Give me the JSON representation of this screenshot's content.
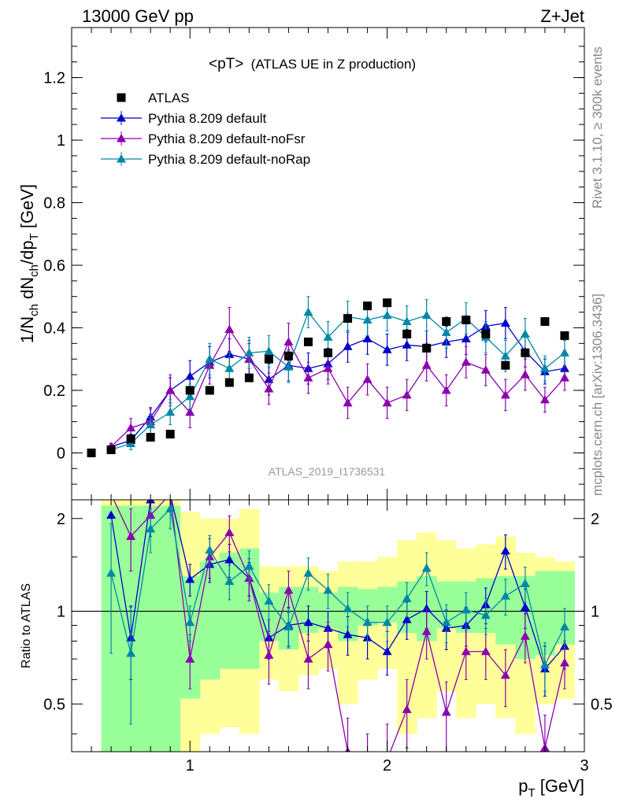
{
  "header": {
    "left_label": "13000 GeV pp",
    "right_label": "Z+Jet"
  },
  "side_labels": {
    "rivet": "Rivet 3.1.10, ≥ 300k events",
    "mcplots": "mcplots.cern.ch [arXiv:1306.3436]"
  },
  "chart_data": [
    {
      "type": "scatter",
      "title": "<pT>",
      "title_suffix": "(ATLAS UE in Z production)",
      "analysis_label": "ATLAS_2019_I1736531",
      "ylabel": "1/N_ch dN_ch/dp_T [GeV]",
      "ylabel_parts": {
        "main": "1/N",
        "sub1": "ch",
        "mid": " dN",
        "sub2": "ch",
        "mid2": "/dp",
        "sub3": "T",
        "unit": " [GeV]"
      },
      "xlim": [
        0.4,
        3.0
      ],
      "ylim": [
        -0.15,
        1.36
      ],
      "yticks": [
        "0",
        "0.2",
        "0.4",
        "0.6",
        "0.8",
        "1",
        "1.2"
      ],
      "grid": false,
      "legend_position": "top-left",
      "series": [
        {
          "name": "ATLAS",
          "marker": "square",
          "color": "#000000",
          "x": [
            0.5,
            0.6,
            0.7,
            0.8,
            0.9,
            1.0,
            1.1,
            1.2,
            1.3,
            1.4,
            1.5,
            1.6,
            1.7,
            1.8,
            1.9,
            2.0,
            2.1,
            2.2,
            2.3,
            2.4,
            2.5,
            2.6,
            2.7,
            2.8,
            2.9
          ],
          "y": [
            0.0,
            0.01,
            0.045,
            0.05,
            0.06,
            0.2,
            0.2,
            0.225,
            0.24,
            0.3,
            0.31,
            0.355,
            0.32,
            0.43,
            0.47,
            0.48,
            0.38,
            0.335,
            0.42,
            0.425,
            0.38,
            0.28,
            0.32,
            0.42,
            0.375
          ]
        },
        {
          "name": "Pythia 8.209 default",
          "marker": "triangle",
          "color": "#0000cc",
          "x": [
            0.6,
            0.7,
            0.8,
            0.9,
            1.0,
            1.1,
            1.2,
            1.3,
            1.4,
            1.5,
            1.6,
            1.7,
            1.8,
            1.9,
            2.0,
            2.1,
            2.2,
            2.3,
            2.4,
            2.5,
            2.6,
            2.7,
            2.8,
            2.9
          ],
          "y": [
            0.02,
            0.04,
            0.115,
            0.2,
            0.245,
            0.29,
            0.315,
            0.3,
            0.235,
            0.28,
            0.27,
            0.285,
            0.34,
            0.365,
            0.33,
            0.345,
            0.34,
            0.355,
            0.365,
            0.405,
            0.415,
            0.325,
            0.26,
            0.27
          ],
          "err": [
            0.01,
            0.02,
            0.03,
            0.04,
            0.05,
            0.05,
            0.05,
            0.05,
            0.05,
            0.05,
            0.05,
            0.05,
            0.05,
            0.05,
            0.05,
            0.05,
            0.05,
            0.05,
            0.05,
            0.05,
            0.05,
            0.05,
            0.04,
            0.04
          ]
        },
        {
          "name": "Pythia 8.209 default-noFsr",
          "marker": "triangle",
          "color": "#8b00b0",
          "x": [
            0.6,
            0.7,
            0.8,
            0.9,
            1.0,
            1.1,
            1.2,
            1.3,
            1.4,
            1.5,
            1.6,
            1.7,
            1.8,
            1.9,
            2.0,
            2.1,
            2.2,
            2.3,
            2.4,
            2.5,
            2.6,
            2.7,
            2.8,
            2.9
          ],
          "y": [
            0.02,
            0.08,
            0.1,
            0.2,
            0.13,
            0.28,
            0.395,
            0.3,
            0.205,
            0.355,
            0.24,
            0.27,
            0.16,
            0.235,
            0.16,
            0.185,
            0.28,
            0.2,
            0.29,
            0.265,
            0.185,
            0.25,
            0.17,
            0.24
          ],
          "err": [
            0.01,
            0.03,
            0.04,
            0.05,
            0.05,
            0.06,
            0.07,
            0.06,
            0.05,
            0.06,
            0.05,
            0.05,
            0.05,
            0.05,
            0.05,
            0.05,
            0.05,
            0.05,
            0.05,
            0.05,
            0.05,
            0.05,
            0.04,
            0.04
          ]
        },
        {
          "name": "Pythia 8.209 default-noRap",
          "marker": "triangle",
          "color": "#0087a8",
          "x": [
            0.6,
            0.7,
            0.8,
            0.9,
            1.0,
            1.1,
            1.2,
            1.3,
            1.4,
            1.5,
            1.6,
            1.7,
            1.8,
            1.9,
            2.0,
            2.1,
            2.2,
            2.3,
            2.4,
            2.5,
            2.6,
            2.7,
            2.8,
            2.9
          ],
          "y": [
            0.01,
            0.03,
            0.09,
            0.13,
            0.18,
            0.3,
            0.27,
            0.32,
            0.325,
            0.275,
            0.45,
            0.37,
            0.435,
            0.425,
            0.44,
            0.42,
            0.44,
            0.385,
            0.43,
            0.37,
            0.31,
            0.38,
            0.27,
            0.32
          ],
          "err": [
            0.01,
            0.02,
            0.03,
            0.04,
            0.04,
            0.05,
            0.05,
            0.05,
            0.05,
            0.05,
            0.05,
            0.05,
            0.05,
            0.05,
            0.05,
            0.05,
            0.05,
            0.05,
            0.05,
            0.05,
            0.05,
            0.05,
            0.04,
            0.04
          ]
        }
      ]
    },
    {
      "type": "line",
      "ylabel": "Ratio to ATLAS",
      "xlabel": "p_T [GeV]",
      "xlabel_parts": {
        "main": "p",
        "sub": "T",
        "unit": " [GeV]"
      },
      "xlim": [
        0.4,
        3.0
      ],
      "ylim": [
        0.35,
        2.3
      ],
      "xticks": [
        "1",
        "2",
        "3"
      ],
      "yticks": [
        "0.5",
        "1",
        "2"
      ],
      "yscale": "log",
      "reference_line": 1.0,
      "bands": {
        "x_edges": [
          0.55,
          0.65,
          0.75,
          0.85,
          0.95,
          1.05,
          1.15,
          1.25,
          1.35,
          1.45,
          1.55,
          1.65,
          1.75,
          1.85,
          1.95,
          2.05,
          2.15,
          2.25,
          2.35,
          2.45,
          2.55,
          2.65,
          2.75,
          2.85,
          2.95
        ],
        "inner_color": "#99ff99",
        "outer_color": "#ffff99",
        "inner_low": [
          0.35,
          0.35,
          0.35,
          0.35,
          0.52,
          0.6,
          0.65,
          0.65,
          0.8,
          0.75,
          0.85,
          0.88,
          0.8,
          0.9,
          0.92,
          0.85,
          0.8,
          0.88,
          0.85,
          0.85,
          0.78,
          0.7,
          0.72,
          0.78
        ],
        "inner_high": [
          2.2,
          2.2,
          2.2,
          2.2,
          1.3,
          1.45,
          1.55,
          1.6,
          1.15,
          1.2,
          1.2,
          1.15,
          1.2,
          1.18,
          1.2,
          1.25,
          1.3,
          1.25,
          1.25,
          1.28,
          1.3,
          1.3,
          1.35,
          1.35
        ],
        "outer_low": [
          0.35,
          0.4,
          0.35,
          0.35,
          0.35,
          0.4,
          0.42,
          0.4,
          0.6,
          0.55,
          0.62,
          0.65,
          0.5,
          0.6,
          0.65,
          0.4,
          0.45,
          0.55,
          0.45,
          0.5,
          0.45,
          0.4,
          0.5,
          0.52
        ],
        "outer_high": [
          2.3,
          2.3,
          2.3,
          2.3,
          2.1,
          2.0,
          2.0,
          2.15,
          1.4,
          1.4,
          1.4,
          1.35,
          1.45,
          1.45,
          1.5,
          1.7,
          1.8,
          1.7,
          1.6,
          1.65,
          1.75,
          1.55,
          1.5,
          1.45
        ]
      },
      "series": [
        {
          "name": "Pythia 8.209 default",
          "color": "#0000cc",
          "x": [
            0.6,
            0.7,
            0.8,
            0.9,
            1.0,
            1.1,
            1.2,
            1.3,
            1.4,
            1.5,
            1.6,
            1.7,
            1.8,
            1.9,
            2.0,
            2.1,
            2.2,
            2.3,
            2.4,
            2.5,
            2.6,
            2.7,
            2.8,
            2.9
          ],
          "y": [
            2.05,
            0.82,
            2.3,
            2.4,
            1.27,
            1.42,
            1.47,
            1.28,
            0.82,
            0.9,
            0.92,
            0.88,
            0.84,
            0.82,
            0.74,
            0.94,
            1.02,
            0.88,
            0.9,
            1.05,
            1.57,
            1.03,
            0.65,
            0.77
          ],
          "err": [
            0.0,
            0.22,
            0.3,
            0.3,
            0.15,
            0.18,
            0.18,
            0.16,
            0.12,
            0.13,
            0.12,
            0.12,
            0.12,
            0.12,
            0.12,
            0.13,
            0.14,
            0.13,
            0.13,
            0.14,
            0.2,
            0.15,
            0.12,
            0.12
          ]
        },
        {
          "name": "Pythia 8.209 default-noFsr",
          "color": "#8b00b0",
          "x": [
            0.6,
            0.7,
            0.8,
            0.9,
            1.0,
            1.1,
            1.2,
            1.3,
            1.4,
            1.5,
            1.6,
            1.7,
            1.8,
            1.9,
            2.0,
            2.1,
            2.2,
            2.3,
            2.4,
            2.5,
            2.6,
            2.7,
            2.8,
            2.9
          ],
          "y": [
            2.4,
            1.75,
            2.05,
            2.4,
            0.7,
            1.5,
            1.8,
            1.28,
            0.72,
            1.17,
            0.7,
            0.78,
            0.35,
            0.3,
            0.33,
            0.48,
            0.86,
            0.47,
            0.74,
            0.74,
            0.62,
            0.83,
            0.36,
            0.68
          ],
          "err": [
            0.0,
            0.4,
            0.3,
            0.3,
            0.14,
            0.22,
            0.24,
            0.2,
            0.14,
            0.18,
            0.14,
            0.14,
            0.1,
            0.1,
            0.1,
            0.12,
            0.16,
            0.12,
            0.14,
            0.14,
            0.13,
            0.15,
            0.1,
            0.12
          ]
        },
        {
          "name": "Pythia 8.209 default-noRap",
          "color": "#0087a8",
          "x": [
            0.6,
            0.7,
            0.8,
            0.9,
            1.0,
            1.1,
            1.2,
            1.3,
            1.4,
            1.5,
            1.6,
            1.7,
            1.8,
            1.9,
            2.0,
            2.1,
            2.2,
            2.3,
            2.4,
            2.5,
            2.6,
            2.7,
            2.8,
            2.9
          ],
          "y": [
            1.33,
            0.73,
            1.85,
            2.15,
            0.92,
            1.58,
            1.25,
            1.4,
            1.08,
            0.89,
            1.33,
            1.17,
            1.02,
            0.92,
            0.92,
            1.1,
            1.38,
            0.92,
            1.01,
            0.97,
            1.12,
            1.23,
            0.67,
            0.89
          ],
          "err": [
            0.6,
            0.3,
            0.3,
            0.3,
            0.12,
            0.18,
            0.16,
            0.17,
            0.14,
            0.13,
            0.16,
            0.15,
            0.13,
            0.12,
            0.12,
            0.14,
            0.17,
            0.13,
            0.14,
            0.13,
            0.15,
            0.16,
            0.12,
            0.13
          ]
        }
      ]
    }
  ]
}
